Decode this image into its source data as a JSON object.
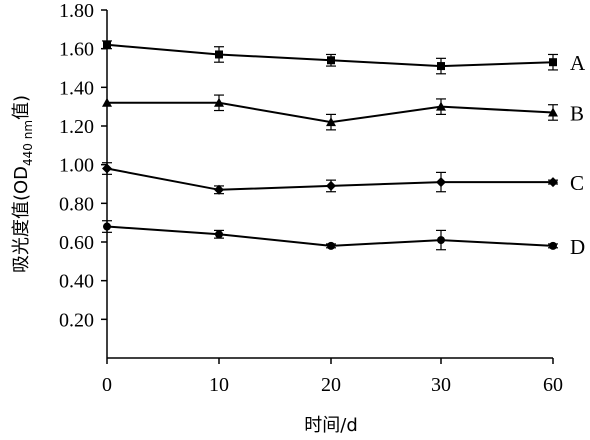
{
  "chart_data": {
    "type": "line",
    "categories": [
      "0",
      "10",
      "20",
      "30",
      "60"
    ],
    "xlabel": "时间/d",
    "ylabel_parts": {
      "prefix": "吸光度值(OD",
      "subscript": "440 nm",
      "suffix": "值)"
    },
    "ylim": [
      0,
      1.8
    ],
    "yticks": [
      "1.80",
      "1.60",
      "1.40",
      "1.20",
      "1.00",
      "0.80",
      "0.60",
      "0.40",
      "0.20"
    ],
    "grid": false,
    "series": [
      {
        "name": "A",
        "marker": "square",
        "values": [
          1.62,
          1.57,
          1.54,
          1.51,
          1.53
        ],
        "errors": [
          0.02,
          0.04,
          0.03,
          0.04,
          0.04
        ]
      },
      {
        "name": "B",
        "marker": "triangle",
        "values": [
          1.32,
          1.32,
          1.22,
          1.3,
          1.27
        ],
        "errors": [
          0.0,
          0.04,
          0.04,
          0.04,
          0.04
        ]
      },
      {
        "name": "C",
        "marker": "diamond",
        "values": [
          0.98,
          0.87,
          0.89,
          0.91,
          0.91
        ],
        "errors": [
          0.03,
          0.02,
          0.03,
          0.05,
          0.01
        ]
      },
      {
        "name": "D",
        "marker": "circle",
        "values": [
          0.68,
          0.64,
          0.58,
          0.61,
          0.58
        ],
        "errors": [
          0.03,
          0.02,
          0.01,
          0.05,
          0.01
        ]
      }
    ]
  }
}
